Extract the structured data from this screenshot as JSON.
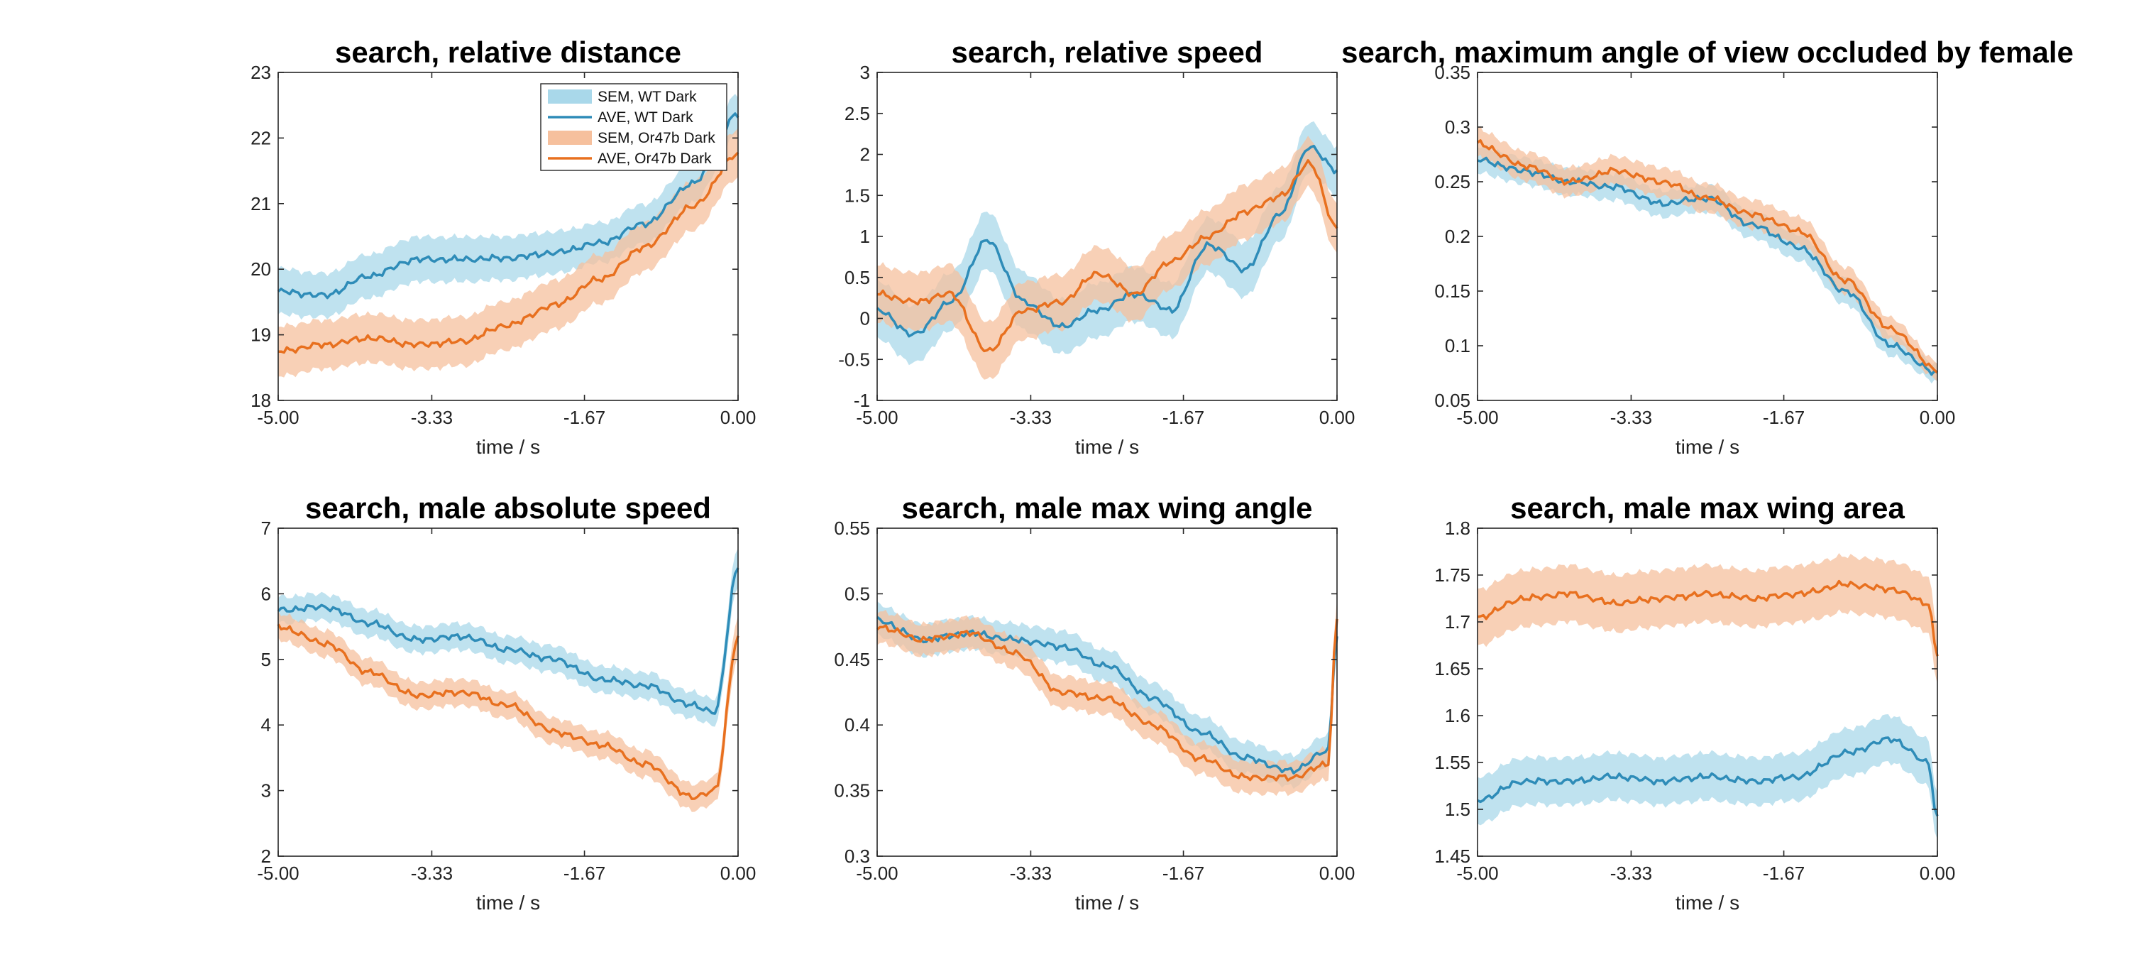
{
  "colors": {
    "wt_line": "#2e8cb8",
    "wt_band": "#a9d8ea",
    "or_line": "#e8701f",
    "or_band": "#f6c09d"
  },
  "legend": {
    "entries": [
      "SEM, WT Dark",
      "AVE, WT Dark",
      "SEM, Or47b Dark",
      "AVE, Or47b Dark"
    ],
    "placement": "top-right"
  },
  "chart_data": [
    {
      "type": "line",
      "title": "search, relative distance",
      "xlabel": "time / s",
      "ylabel": "",
      "xlim": [
        -5,
        0
      ],
      "ylim": [
        18,
        23
      ],
      "xticks": [
        -5,
        -3.33,
        -1.67,
        0
      ],
      "xtick_labels": [
        "-5.00",
        "-3.33",
        "-1.67",
        "0.00"
      ],
      "yticks": [
        18,
        19,
        20,
        21,
        22,
        23
      ],
      "ytick_labels": [
        "18",
        "19",
        "20",
        "21",
        "22",
        "23"
      ],
      "legend": true,
      "series": [
        {
          "name": "WT Dark",
          "x": [
            -5,
            -4.5,
            -4,
            -3.5,
            -3,
            -2.5,
            -2,
            -1.5,
            -1,
            -0.5,
            0
          ],
          "values": [
            19.66,
            19.6,
            19.9,
            20.15,
            20.15,
            20.17,
            20.25,
            20.4,
            20.7,
            21.3,
            22.35
          ],
          "sem": [
            0.35,
            0.33,
            0.33,
            0.34,
            0.34,
            0.33,
            0.32,
            0.3,
            0.3,
            0.3,
            0.3
          ]
        },
        {
          "name": "Or47b Dark",
          "x": [
            -5,
            -4.5,
            -4,
            -3.5,
            -3,
            -2.5,
            -2,
            -1.5,
            -1,
            -0.5,
            0
          ],
          "values": [
            18.75,
            18.85,
            18.95,
            18.85,
            18.9,
            19.15,
            19.45,
            19.85,
            20.35,
            20.95,
            21.75
          ],
          "sem": [
            0.38,
            0.37,
            0.37,
            0.37,
            0.37,
            0.37,
            0.37,
            0.37,
            0.37,
            0.37,
            0.37
          ]
        }
      ]
    },
    {
      "type": "line",
      "title": "search, relative speed",
      "xlabel": "time / s",
      "ylabel": "",
      "xlim": [
        -5,
        0
      ],
      "ylim": [
        -1,
        3
      ],
      "xticks": [
        -5,
        -3.33,
        -1.67,
        0
      ],
      "xtick_labels": [
        "-5.00",
        "-3.33",
        "-1.67",
        "0.00"
      ],
      "yticks": [
        -1,
        -0.5,
        0,
        0.5,
        1,
        1.5,
        2,
        2.5,
        3
      ],
      "ytick_labels": [
        "-1",
        "-0.5",
        "0",
        "0.5",
        "1",
        "1.5",
        "2",
        "2.5",
        "3"
      ],
      "legend": false,
      "series": [
        {
          "name": "WT Dark",
          "x": [
            -5,
            -4.6,
            -4.2,
            -3.8,
            -3.4,
            -3.0,
            -2.6,
            -2.2,
            -1.8,
            -1.4,
            -1.0,
            -0.6,
            -0.3,
            0
          ],
          "values": [
            0.1,
            -0.2,
            0.2,
            0.95,
            0.2,
            -0.1,
            0.1,
            0.3,
            0.1,
            0.9,
            0.6,
            1.3,
            2.1,
            1.8
          ],
          "sem": [
            0.35,
            0.35,
            0.35,
            0.35,
            0.35,
            0.33,
            0.33,
            0.33,
            0.33,
            0.33,
            0.33,
            0.33,
            0.3,
            0.3
          ]
        },
        {
          "name": "Or47b Dark",
          "x": [
            -5,
            -4.6,
            -4.2,
            -3.8,
            -3.4,
            -3.0,
            -2.6,
            -2.2,
            -1.8,
            -1.4,
            -1.0,
            -0.6,
            -0.3,
            0
          ],
          "values": [
            0.3,
            0.2,
            0.3,
            -0.4,
            0.1,
            0.2,
            0.55,
            0.3,
            0.7,
            1.0,
            1.3,
            1.5,
            1.9,
            1.1
          ],
          "sem": [
            0.35,
            0.35,
            0.35,
            0.35,
            0.35,
            0.33,
            0.33,
            0.33,
            0.33,
            0.33,
            0.33,
            0.33,
            0.3,
            0.3
          ]
        }
      ]
    },
    {
      "type": "line",
      "title": "search, maximum angle of view occluded by female",
      "xlabel": "time / s",
      "ylabel": "",
      "xlim": [
        -5,
        0
      ],
      "ylim": [
        0.05,
        0.35
      ],
      "xticks": [
        -5,
        -3.33,
        -1.67,
        0
      ],
      "xtick_labels": [
        "-5.00",
        "-3.33",
        "-1.67",
        "0.00"
      ],
      "yticks": [
        0.05,
        0.1,
        0.15,
        0.2,
        0.25,
        0.3,
        0.35
      ],
      "ytick_labels": [
        "0.05",
        "0.1",
        "0.15",
        "0.2",
        "0.25",
        "0.3",
        "0.35"
      ],
      "legend": false,
      "series": [
        {
          "name": "WT Dark",
          "x": [
            -5,
            -4.5,
            -4,
            -3.5,
            -3,
            -2.5,
            -2,
            -1.5,
            -1,
            -0.5,
            0
          ],
          "values": [
            0.27,
            0.26,
            0.25,
            0.245,
            0.23,
            0.235,
            0.21,
            0.19,
            0.15,
            0.1,
            0.075
          ],
          "sem": [
            0.012,
            0.012,
            0.012,
            0.012,
            0.012,
            0.012,
            0.012,
            0.012,
            0.012,
            0.01,
            0.008
          ]
        },
        {
          "name": "Or47b Dark",
          "x": [
            -5,
            -4.5,
            -4,
            -3.5,
            -3,
            -2.5,
            -2,
            -1.5,
            -1,
            -0.5,
            0
          ],
          "values": [
            0.285,
            0.265,
            0.25,
            0.26,
            0.25,
            0.235,
            0.22,
            0.205,
            0.16,
            0.115,
            0.078
          ],
          "sem": [
            0.013,
            0.013,
            0.013,
            0.013,
            0.013,
            0.013,
            0.013,
            0.013,
            0.012,
            0.01,
            0.008
          ]
        }
      ]
    },
    {
      "type": "line",
      "title": "search, male absolute speed",
      "xlabel": "time / s",
      "ylabel": "",
      "xlim": [
        -5,
        0
      ],
      "ylim": [
        2,
        7
      ],
      "xticks": [
        -5,
        -3.33,
        -1.67,
        0
      ],
      "xtick_labels": [
        "-5.00",
        "-3.33",
        "-1.67",
        "0.00"
      ],
      "yticks": [
        2,
        3,
        4,
        5,
        6,
        7
      ],
      "ytick_labels": [
        "2",
        "3",
        "4",
        "5",
        "6",
        "7"
      ],
      "legend": false,
      "series": [
        {
          "name": "WT Dark",
          "x": [
            -5,
            -4.5,
            -4,
            -3.5,
            -3,
            -2.5,
            -2,
            -1.5,
            -1,
            -0.5,
            -0.25,
            0
          ],
          "values": [
            5.75,
            5.8,
            5.55,
            5.3,
            5.35,
            5.15,
            5.0,
            4.7,
            4.6,
            4.3,
            4.2,
            6.4
          ],
          "sem": [
            0.2,
            0.2,
            0.2,
            0.2,
            0.2,
            0.2,
            0.2,
            0.2,
            0.2,
            0.2,
            0.2,
            0.3
          ]
        },
        {
          "name": "Or47b Dark",
          "x": [
            -5,
            -4.5,
            -4,
            -3.5,
            -3,
            -2.5,
            -2,
            -1.5,
            -1,
            -0.5,
            -0.25,
            0
          ],
          "values": [
            5.5,
            5.25,
            4.8,
            4.45,
            4.5,
            4.3,
            3.9,
            3.7,
            3.4,
            2.9,
            3.0,
            5.35
          ],
          "sem": [
            0.2,
            0.2,
            0.2,
            0.2,
            0.2,
            0.2,
            0.2,
            0.2,
            0.2,
            0.2,
            0.2,
            0.3
          ]
        }
      ]
    },
    {
      "type": "line",
      "title": "search, male max wing angle",
      "xlabel": "time / s",
      "ylabel": "",
      "xlim": [
        -5,
        0
      ],
      "ylim": [
        0.3,
        0.55
      ],
      "xticks": [
        -5,
        -3.33,
        -1.67,
        0
      ],
      "xtick_labels": [
        "-5.00",
        "-3.33",
        "-1.67",
        "0.00"
      ],
      "yticks": [
        0.3,
        0.35,
        0.4,
        0.45,
        0.5,
        0.55
      ],
      "ytick_labels": [
        "0.3",
        "0.35",
        "0.4",
        "0.45",
        "0.5",
        "0.55"
      ],
      "legend": false,
      "series": [
        {
          "name": "WT Dark",
          "x": [
            -5,
            -4.5,
            -4,
            -3.5,
            -3,
            -2.5,
            -2,
            -1.5,
            -1,
            -0.5,
            -0.1,
            0
          ],
          "values": [
            0.48,
            0.465,
            0.47,
            0.465,
            0.46,
            0.445,
            0.42,
            0.395,
            0.375,
            0.365,
            0.38,
            0.47
          ],
          "sem": [
            0.012,
            0.012,
            0.012,
            0.012,
            0.012,
            0.012,
            0.012,
            0.012,
            0.012,
            0.012,
            0.012,
            0.015
          ]
        },
        {
          "name": "Or47b Dark",
          "x": [
            -5,
            -4.5,
            -4,
            -3.5,
            -3,
            -2.5,
            -2,
            -1.5,
            -1,
            -0.5,
            -0.1,
            0
          ],
          "values": [
            0.475,
            0.465,
            0.47,
            0.455,
            0.425,
            0.42,
            0.4,
            0.375,
            0.36,
            0.36,
            0.37,
            0.48
          ],
          "sem": [
            0.012,
            0.012,
            0.012,
            0.012,
            0.012,
            0.012,
            0.012,
            0.012,
            0.012,
            0.012,
            0.012,
            0.015
          ]
        }
      ]
    },
    {
      "type": "line",
      "title": "search, male max wing area",
      "xlabel": "time / s",
      "ylabel": "",
      "xlim": [
        -5,
        0
      ],
      "ylim": [
        1.45,
        1.8
      ],
      "xticks": [
        -5,
        -3.33,
        -1.67,
        0
      ],
      "xtick_labels": [
        "-5.00",
        "-3.33",
        "-1.67",
        "0.00"
      ],
      "yticks": [
        1.45,
        1.5,
        1.55,
        1.6,
        1.65,
        1.7,
        1.75,
        1.8
      ],
      "ytick_labels": [
        "1.45",
        "1.5",
        "1.55",
        "1.6",
        "1.65",
        "1.7",
        "1.75",
        "1.8"
      ],
      "legend": false,
      "series": [
        {
          "name": "WT Dark",
          "x": [
            -5,
            -4.5,
            -4,
            -3.5,
            -3,
            -2.5,
            -2,
            -1.5,
            -1,
            -0.5,
            -0.1,
            0
          ],
          "values": [
            1.51,
            1.53,
            1.53,
            1.535,
            1.53,
            1.535,
            1.53,
            1.535,
            1.56,
            1.575,
            1.55,
            1.49
          ],
          "sem": [
            0.025,
            0.025,
            0.025,
            0.025,
            0.025,
            0.025,
            0.025,
            0.025,
            0.025,
            0.025,
            0.025,
            0.025
          ]
        },
        {
          "name": "Or47b Dark",
          "x": [
            -5,
            -4.5,
            -4,
            -3.5,
            -3,
            -2.5,
            -2,
            -1.5,
            -1,
            -0.5,
            -0.1,
            0
          ],
          "values": [
            1.705,
            1.725,
            1.73,
            1.72,
            1.725,
            1.73,
            1.725,
            1.73,
            1.74,
            1.735,
            1.72,
            1.665
          ],
          "sem": [
            0.03,
            0.03,
            0.03,
            0.03,
            0.03,
            0.03,
            0.03,
            0.03,
            0.03,
            0.03,
            0.03,
            0.03
          ]
        }
      ]
    }
  ]
}
